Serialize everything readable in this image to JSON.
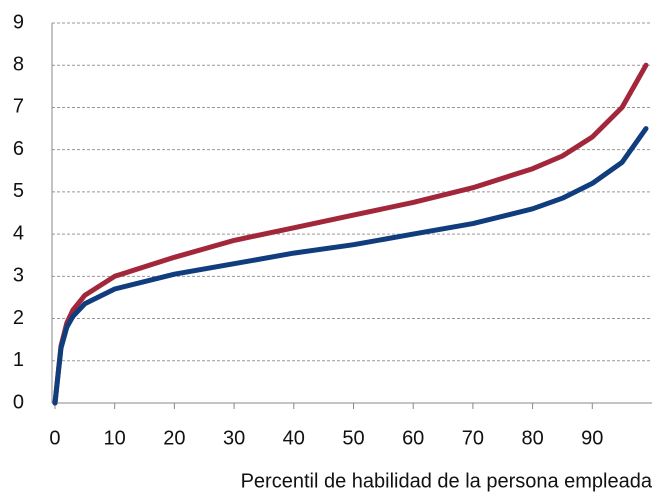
{
  "chart_data": {
    "type": "line",
    "x_label": "Percentil de habilidad de la persona empleada",
    "x": [
      0,
      1,
      2,
      3,
      5,
      10,
      20,
      30,
      40,
      50,
      60,
      70,
      80,
      85,
      90,
      95,
      99
    ],
    "series": [
      {
        "color": "#a3273a",
        "values": [
          0,
          1.35,
          1.9,
          2.2,
          2.55,
          3.0,
          3.45,
          3.85,
          4.15,
          4.45,
          4.75,
          5.1,
          5.55,
          5.85,
          6.3,
          7.0,
          8.0
        ]
      },
      {
        "color": "#0f3d7e",
        "values": [
          0,
          1.3,
          1.8,
          2.05,
          2.35,
          2.7,
          3.05,
          3.3,
          3.55,
          3.75,
          4.0,
          4.25,
          4.6,
          4.85,
          5.2,
          5.7,
          6.5
        ]
      }
    ],
    "xlim": [
      -0.5,
      100
    ],
    "xticks": [
      0,
      10,
      20,
      30,
      40,
      50,
      60,
      70,
      80,
      90
    ],
    "ylim": [
      0,
      9
    ],
    "yticks": [
      0,
      1,
      2,
      3,
      4,
      5,
      6,
      7,
      8,
      9
    ],
    "grid": true
  }
}
